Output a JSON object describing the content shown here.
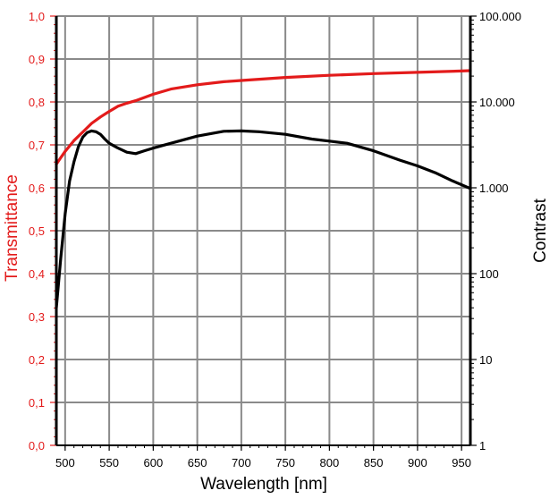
{
  "chart_data": {
    "type": "line",
    "xlabel": "Wavelength [nm]",
    "ylabel_left": "Transmittance",
    "ylabel_right": "Contrast",
    "xlim": [
      490,
      960
    ],
    "ylim_left": [
      0.0,
      1.0
    ],
    "ylim_right_log": [
      1,
      100000
    ],
    "grid": true,
    "x_ticks": [
      {
        "value": 500,
        "label": "500"
      },
      {
        "value": 550,
        "label": "550"
      },
      {
        "value": 600,
        "label": "600"
      },
      {
        "value": 650,
        "label": "650"
      },
      {
        "value": 700,
        "label": "700"
      },
      {
        "value": 750,
        "label": "750"
      },
      {
        "value": 800,
        "label": "800"
      },
      {
        "value": 850,
        "label": "850"
      },
      {
        "value": 900,
        "label": "900"
      },
      {
        "value": 950,
        "label": "950"
      }
    ],
    "y_left_ticks": [
      {
        "value": 0.0,
        "label": "0,0"
      },
      {
        "value": 0.1,
        "label": "0,1"
      },
      {
        "value": 0.2,
        "label": "0,2"
      },
      {
        "value": 0.3,
        "label": "0,3"
      },
      {
        "value": 0.4,
        "label": "0,4"
      },
      {
        "value": 0.5,
        "label": "0,5"
      },
      {
        "value": 0.6,
        "label": "0,6"
      },
      {
        "value": 0.7,
        "label": "0,7"
      },
      {
        "value": 0.8,
        "label": "0,8"
      },
      {
        "value": 0.9,
        "label": "0,9"
      },
      {
        "value": 1.0,
        "label": "1,0"
      }
    ],
    "y_right_ticks": [
      {
        "value": 1,
        "label": "1"
      },
      {
        "value": 10,
        "label": "10"
      },
      {
        "value": 100,
        "label": "100"
      },
      {
        "value": 1000,
        "label": "1.000"
      },
      {
        "value": 10000,
        "label": "10.000"
      },
      {
        "value": 100000,
        "label": "100.000"
      }
    ],
    "series": [
      {
        "name": "Transmittance",
        "axis": "left",
        "color": "#e31b1b",
        "x": [
          490,
          495,
          500,
          510,
          520,
          530,
          540,
          550,
          560,
          570,
          580,
          600,
          620,
          650,
          680,
          700,
          750,
          800,
          850,
          900,
          950,
          960
        ],
        "y": [
          0.655,
          0.67,
          0.685,
          0.71,
          0.73,
          0.75,
          0.765,
          0.778,
          0.79,
          0.797,
          0.803,
          0.818,
          0.83,
          0.84,
          0.847,
          0.85,
          0.857,
          0.862,
          0.866,
          0.869,
          0.872,
          0.873
        ]
      },
      {
        "name": "Contrast",
        "axis": "right",
        "color": "#000000",
        "x": [
          490,
          495,
          500,
          505,
          510,
          515,
          520,
          525,
          530,
          535,
          540,
          545,
          550,
          560,
          570,
          580,
          590,
          600,
          620,
          650,
          680,
          700,
          720,
          750,
          780,
          800,
          820,
          850,
          880,
          900,
          920,
          940,
          960
        ],
        "y": [
          40,
          150,
          500,
          1200,
          2000,
          3000,
          3900,
          4400,
          4600,
          4500,
          4200,
          3700,
          3300,
          2900,
          2600,
          2500,
          2700,
          2900,
          3300,
          4000,
          4550,
          4600,
          4500,
          4200,
          3700,
          3500,
          3300,
          2700,
          2100,
          1800,
          1500,
          1200,
          980
        ]
      }
    ]
  }
}
